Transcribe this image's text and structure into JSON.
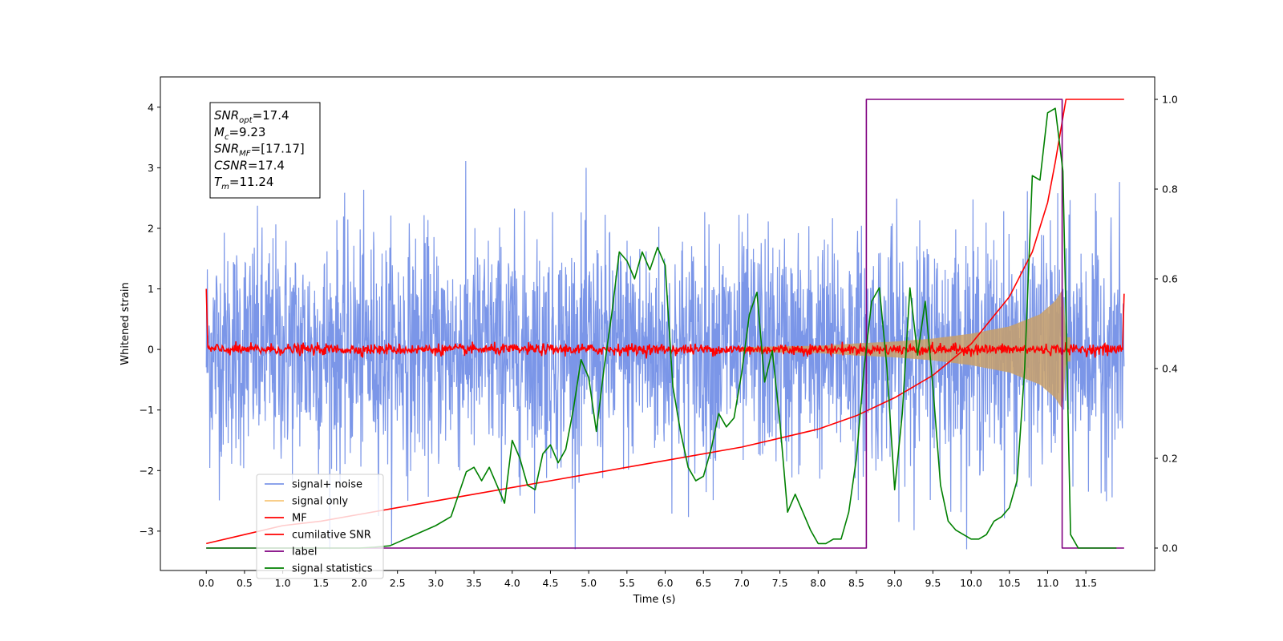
{
  "chart_data": {
    "type": "line",
    "xlabel": "Time (s)",
    "ylabel": "Whitened strain",
    "xlim": [
      -0.6,
      12.4
    ],
    "ylim": [
      -3.65,
      4.5
    ],
    "y2lim": [
      -0.05,
      1.05
    ],
    "x_ticks": [
      "0.0",
      "0.5",
      "1.0",
      "1.5",
      "2.0",
      "2.5",
      "3.0",
      "3.5",
      "4.0",
      "4.5",
      "5.0",
      "5.5",
      "6.0",
      "6.5",
      "7.0",
      "7.5",
      "8.0",
      "8.5",
      "9.0",
      "9.5",
      "10.0",
      "10.5",
      "11.0",
      "11.5"
    ],
    "y_ticks": [
      -3,
      -2,
      -1,
      0,
      1,
      2,
      3,
      4
    ],
    "y2_ticks": [
      "0.0",
      "0.2",
      "0.4",
      "0.6",
      "0.8",
      "1.0"
    ],
    "legend_position": "lower-left",
    "info_box": [
      {
        "base": "SNR",
        "sub": "opt",
        "value": "=17.4"
      },
      {
        "base": "M",
        "sub": "c",
        "value": "=9.23"
      },
      {
        "base": "SNR",
        "sub": "MF",
        "value": "=[17.17]"
      },
      {
        "base": "CSNR",
        "sub": "",
        "value": "=17.4"
      },
      {
        "base": "T",
        "sub": "m",
        "value": "=11.24"
      }
    ],
    "series": [
      {
        "name": "signal+ noise",
        "color": "#7b96e8",
        "axis": "left",
        "kind": "noise_band",
        "x_range": [
          0.0,
          12.0
        ],
        "typical_min": -2.0,
        "typical_max": 2.2,
        "peak_max": 3.4,
        "peak_min": -3.3
      },
      {
        "name": "signal only",
        "color": "#f7c77a",
        "axis": "left",
        "kind": "chirp_envelope",
        "x_range": [
          7.0,
          11.3
        ],
        "envelope": [
          [
            7.0,
            0.04
          ],
          [
            8.0,
            0.06
          ],
          [
            8.5,
            0.1
          ],
          [
            9.0,
            0.13
          ],
          [
            9.5,
            0.18
          ],
          [
            10.0,
            0.26
          ],
          [
            10.5,
            0.38
          ],
          [
            10.9,
            0.58
          ],
          [
            11.1,
            0.8
          ],
          [
            11.2,
            1.0
          ],
          [
            11.24,
            0.2
          ]
        ]
      },
      {
        "name": "MF",
        "color": "#ff0000",
        "axis": "left",
        "kind": "noise_line",
        "x_range": [
          0.0,
          12.0
        ],
        "center": 0.0,
        "amplitude": 0.09,
        "edges": [
          [
            0.0,
            1.0
          ],
          [
            12.0,
            0.92
          ]
        ]
      },
      {
        "name": "cumilative SNR",
        "color": "#ff0000",
        "axis": "right",
        "x": [
          0.0,
          0.5,
          1.0,
          1.5,
          2.0,
          2.5,
          3.0,
          3.5,
          4.0,
          4.5,
          5.0,
          5.5,
          6.0,
          6.5,
          7.0,
          7.5,
          8.0,
          8.5,
          9.0,
          9.5,
          10.0,
          10.5,
          10.8,
          11.0,
          11.1,
          11.2,
          11.24,
          12.0
        ],
        "values": [
          0.01,
          0.03,
          0.05,
          0.06,
          0.075,
          0.09,
          0.105,
          0.12,
          0.135,
          0.15,
          0.165,
          0.18,
          0.195,
          0.21,
          0.225,
          0.245,
          0.265,
          0.295,
          0.335,
          0.385,
          0.455,
          0.56,
          0.66,
          0.77,
          0.86,
          0.96,
          1.0,
          1.0
        ]
      },
      {
        "name": "label",
        "color": "#800080",
        "axis": "right",
        "x": [
          0.0,
          8.63,
          8.63,
          11.19,
          11.19,
          12.0
        ],
        "values": [
          0.0,
          0.0,
          1.0,
          1.0,
          0.0,
          0.0
        ]
      },
      {
        "name": "signal statistics",
        "color": "#008000",
        "axis": "right",
        "x": [
          0.0,
          0.5,
          1.0,
          1.5,
          2.0,
          2.2,
          2.4,
          2.6,
          2.8,
          3.0,
          3.2,
          3.4,
          3.5,
          3.6,
          3.7,
          3.8,
          3.9,
          4.0,
          4.1,
          4.2,
          4.3,
          4.4,
          4.5,
          4.6,
          4.7,
          4.8,
          4.9,
          5.0,
          5.1,
          5.2,
          5.3,
          5.4,
          5.5,
          5.6,
          5.7,
          5.8,
          5.9,
          6.0,
          6.1,
          6.2,
          6.3,
          6.4,
          6.5,
          6.6,
          6.7,
          6.8,
          6.9,
          7.0,
          7.1,
          7.2,
          7.3,
          7.4,
          7.5,
          7.6,
          7.7,
          7.8,
          7.9,
          8.0,
          8.1,
          8.2,
          8.3,
          8.4,
          8.5,
          8.6,
          8.7,
          8.8,
          8.9,
          9.0,
          9.1,
          9.2,
          9.3,
          9.4,
          9.5,
          9.6,
          9.7,
          9.8,
          9.9,
          10.0,
          10.1,
          10.2,
          10.3,
          10.4,
          10.5,
          10.6,
          10.7,
          10.8,
          10.9,
          11.0,
          11.1,
          11.2,
          11.3,
          11.4,
          11.5,
          11.6,
          11.7,
          11.8,
          11.9
        ],
        "values": [
          0.0,
          0.0,
          0.0,
          0.0,
          0.0,
          0.002,
          0.005,
          0.02,
          0.035,
          0.05,
          0.07,
          0.17,
          0.18,
          0.15,
          0.18,
          0.14,
          0.1,
          0.24,
          0.2,
          0.14,
          0.13,
          0.21,
          0.23,
          0.19,
          0.22,
          0.31,
          0.42,
          0.38,
          0.26,
          0.4,
          0.52,
          0.66,
          0.64,
          0.6,
          0.66,
          0.62,
          0.67,
          0.63,
          0.36,
          0.26,
          0.18,
          0.15,
          0.16,
          0.22,
          0.3,
          0.27,
          0.29,
          0.39,
          0.52,
          0.57,
          0.37,
          0.44,
          0.28,
          0.08,
          0.12,
          0.08,
          0.04,
          0.01,
          0.01,
          0.02,
          0.02,
          0.08,
          0.2,
          0.4,
          0.55,
          0.58,
          0.4,
          0.13,
          0.3,
          0.58,
          0.43,
          0.55,
          0.36,
          0.14,
          0.06,
          0.04,
          0.03,
          0.02,
          0.02,
          0.03,
          0.06,
          0.07,
          0.09,
          0.15,
          0.4,
          0.83,
          0.82,
          0.97,
          0.98,
          0.84,
          0.03,
          0.0,
          0.0,
          0.0,
          0.0,
          0.0,
          0.0
        ]
      }
    ]
  }
}
